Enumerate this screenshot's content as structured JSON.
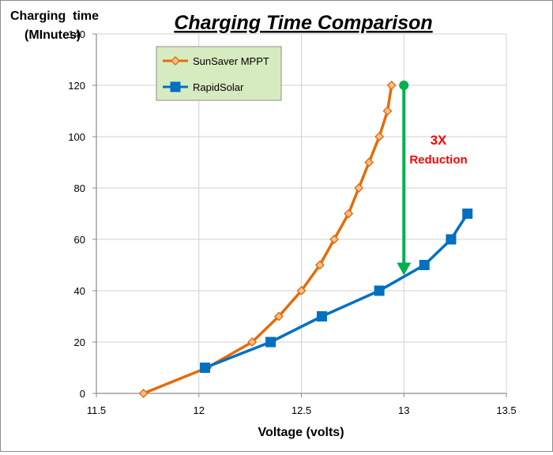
{
  "chart_data": {
    "type": "line",
    "title": "Charging Time Comparison",
    "xlabel": "Voltage (volts)",
    "ylabel_line1": "Charging  time",
    "ylabel_line2": "(MInutes)",
    "xlim": [
      11.5,
      13.5
    ],
    "ylim": [
      0,
      140
    ],
    "x_ticks": [
      11.5,
      12,
      12.5,
      13,
      13.5
    ],
    "x_tick_labels": [
      "11.5",
      "12",
      "12.5",
      "13",
      "13.5"
    ],
    "y_ticks": [
      0,
      20,
      40,
      60,
      80,
      100,
      120,
      140
    ],
    "y_tick_labels": [
      "0",
      "20",
      "40",
      "60",
      "80",
      "100",
      "120",
      "140"
    ],
    "grid": "vertical and horizontal",
    "legend_position": "top-left",
    "series": [
      {
        "name": "SunSaver MPPT",
        "color": "#E46C0A",
        "marker": "diamond",
        "x": [
          11.73,
          12.04,
          12.26,
          12.39,
          12.5,
          12.59,
          12.66,
          12.73,
          12.78,
          12.83,
          12.88,
          12.92,
          12.94
        ],
        "y": [
          0,
          10,
          20,
          30,
          40,
          50,
          60,
          70,
          80,
          90,
          100,
          110,
          120
        ]
      },
      {
        "name": "RapidSolar",
        "color": "#0070C0",
        "marker": "square",
        "x": [
          12.03,
          12.35,
          12.6,
          12.88,
          13.1,
          13.23,
          13.31
        ],
        "y": [
          10,
          20,
          30,
          40,
          50,
          60,
          70
        ]
      }
    ],
    "annotation": {
      "line1": "3X",
      "line2": "Reduction",
      "color": "#FF0000",
      "arrow_color": "#00B050",
      "arrow_x": 13,
      "arrow_from_y": 120,
      "arrow_to_y": 46
    },
    "legend_bg": "#D7EBC0"
  }
}
